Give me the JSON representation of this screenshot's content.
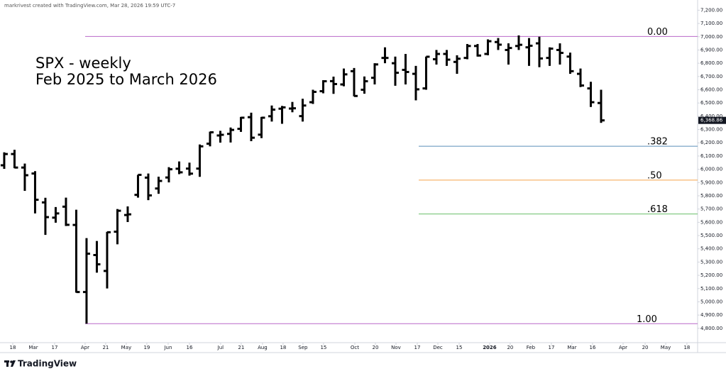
{
  "chart_data": {
    "type": "ohlc",
    "credit": "markrivest created with TradingView.com, Mar 28, 2026 19:59 UTC-7",
    "title": "SPX - weekly",
    "subtitle": "Feb 2025 to March 2026",
    "brand": "TradingView",
    "color": "#000000",
    "open": [
      6030,
      6115,
      6013,
      5968,
      5750,
      5635,
      5718,
      5580,
      5074,
      5353,
      5233,
      5529,
      5655,
      5807,
      5937,
      5855,
      5938,
      6004,
      6005,
      6005,
      6193,
      6255,
      6267,
      6305,
      6393,
      6261,
      6400,
      6457,
      6458,
      6401,
      6506,
      6589,
      6665,
      6640,
      6740,
      6600,
      6690,
      6840,
      6800,
      6750,
      6720,
      6610,
      6830,
      6870,
      6810,
      6840,
      6930,
      6870,
      6960,
      6900,
      6930,
      6920,
      6950,
      6840,
      6900,
      6850,
      6720,
      6610,
      6500
    ],
    "high": [
      6128,
      6147,
      6043,
      5986,
      5785,
      5715,
      5786,
      5695,
      5481,
      5459,
      5528,
      5700,
      5720,
      5958,
      5968,
      5944,
      6016,
      6059,
      6050,
      6187,
      6284,
      6290,
      6315,
      6395,
      6427,
      6395,
      6481,
      6478,
      6508,
      6532,
      6600,
      6672,
      6699,
      6760,
      6764,
      6700,
      6800,
      6920,
      6850,
      6870,
      6780,
      6850,
      6900,
      6900,
      6860,
      6945,
      6945,
      6980,
      6990,
      6950,
      7010,
      6990,
      7000,
      6920,
      6950,
      6880,
      6760,
      6660,
      6600
    ],
    "low": [
      6003,
      6008,
      5837,
      5667,
      5505,
      5597,
      5572,
      5069,
      4835,
      5220,
      5101,
      5434,
      5602,
      5786,
      5767,
      5815,
      5901,
      5963,
      5952,
      5943,
      6173,
      6201,
      6202,
      6282,
      6212,
      6235,
      6360,
      6343,
      6430,
      6360,
      6493,
      6573,
      6569,
      6626,
      6550,
      6570,
      6640,
      6800,
      6630,
      6640,
      6520,
      6600,
      6790,
      6780,
      6720,
      6830,
      6850,
      6860,
      6900,
      6790,
      6900,
      6780,
      6770,
      6780,
      6790,
      6720,
      6620,
      6470,
      6350
    ],
    "close": [
      6115,
      6013,
      5955,
      5770,
      5639,
      5667,
      5581,
      5074,
      5363,
      5283,
      5525,
      5687,
      5660,
      5958,
      5803,
      5912,
      6000,
      5977,
      5967,
      6173,
      6279,
      6260,
      6297,
      6389,
      6238,
      6389,
      6450,
      6467,
      6460,
      6481,
      6584,
      6664,
      6643,
      6716,
      6553,
      6664,
      6791,
      6840,
      6728,
      6734,
      6603,
      6849,
      6870,
      6827,
      6834,
      6930,
      6858,
      6966,
      6940,
      6915,
      6939,
      6932,
      6836,
      6910,
      6878,
      6740,
      6632,
      6506,
      6368.86
    ],
    "last_close_label": "6,368.86",
    "levels": [
      {
        "label": "0.00",
        "value": 7002,
        "color": "#ba68c8"
      },
      {
        "label": ".382",
        "value": 6174,
        "color": "#5b8fb9"
      },
      {
        "label": ".50",
        "value": 5918,
        "color": "#f5a54a"
      },
      {
        "label": ".618",
        "value": 5663,
        "color": "#6abf69"
      },
      {
        "label": "1.00",
        "value": 4835,
        "color": "#ba68c8"
      }
    ],
    "ylim": [
      4692,
      7277
    ],
    "yticks": [
      {
        "value": 4800,
        "label": "4,800.00"
      },
      {
        "value": 4900,
        "label": "4,900.00"
      },
      {
        "value": 5000,
        "label": "5,000.00"
      },
      {
        "value": 5100,
        "label": "5,100.00"
      },
      {
        "value": 5200,
        "label": "5,200.00"
      },
      {
        "value": 5300,
        "label": "5,300.00"
      },
      {
        "value": 5400,
        "label": "5,400.00"
      },
      {
        "value": 5500,
        "label": "5,500.00"
      },
      {
        "value": 5600,
        "label": "5,600.00"
      },
      {
        "value": 5700,
        "label": "5,700.00"
      },
      {
        "value": 5800,
        "label": "5,800.00"
      },
      {
        "value": 5900,
        "label": "5,900.00"
      },
      {
        "value": 6000,
        "label": "6,000.00"
      },
      {
        "value": 6100,
        "label": "6,100.00"
      },
      {
        "value": 6200,
        "label": "6,200.00"
      },
      {
        "value": 6300,
        "label": "6,300.00"
      },
      {
        "value": 6400,
        "label": "6,400.00"
      },
      {
        "value": 6500,
        "label": "6,500.00"
      },
      {
        "value": 6600,
        "label": "6,600.00"
      },
      {
        "value": 6700,
        "label": "6,700.00"
      },
      {
        "value": 6800,
        "label": "6,800.00"
      },
      {
        "value": 6900,
        "label": "6,900.00"
      },
      {
        "value": 7000,
        "label": "7,000.00"
      },
      {
        "value": 7100,
        "label": "7,100.00"
      },
      {
        "value": 7200,
        "label": "7,200.00"
      }
    ],
    "xlim": [
      -0.41,
      67.38
    ],
    "xticks": [
      {
        "value": 0.83,
        "label": "18"
      },
      {
        "value": 2.83,
        "label": "Mar"
      },
      {
        "value": 4.9,
        "label": "17"
      },
      {
        "value": 7.86,
        "label": "Apr"
      },
      {
        "value": 9.86,
        "label": "21"
      },
      {
        "value": 11.86,
        "label": "May"
      },
      {
        "value": 13.86,
        "label": "19"
      },
      {
        "value": 15.93,
        "label": "Jun"
      },
      {
        "value": 18,
        "label": "16"
      },
      {
        "value": 21.03,
        "label": "Jul"
      },
      {
        "value": 23.03,
        "label": "21"
      },
      {
        "value": 25.1,
        "label": "Aug"
      },
      {
        "value": 27.1,
        "label": "18"
      },
      {
        "value": 29.03,
        "label": "Sep"
      },
      {
        "value": 31.03,
        "label": "15"
      },
      {
        "value": 34.07,
        "label": "Oct"
      },
      {
        "value": 36.07,
        "label": "20"
      },
      {
        "value": 38.07,
        "label": "Nov"
      },
      {
        "value": 40.14,
        "label": "17"
      },
      {
        "value": 42.14,
        "label": "Dec"
      },
      {
        "value": 44.21,
        "label": "15"
      },
      {
        "value": 47.17,
        "label": "2026"
      },
      {
        "value": 49.17,
        "label": "20"
      },
      {
        "value": 51.17,
        "label": "Feb"
      },
      {
        "value": 53.17,
        "label": "17"
      },
      {
        "value": 55.17,
        "label": "Mar"
      },
      {
        "value": 57.17,
        "label": "16"
      },
      {
        "value": 60.14,
        "label": "Apr"
      },
      {
        "value": 62.28,
        "label": "20"
      },
      {
        "value": 64.28,
        "label": "May"
      },
      {
        "value": 66.34,
        "label": "18"
      }
    ],
    "grid": false
  }
}
